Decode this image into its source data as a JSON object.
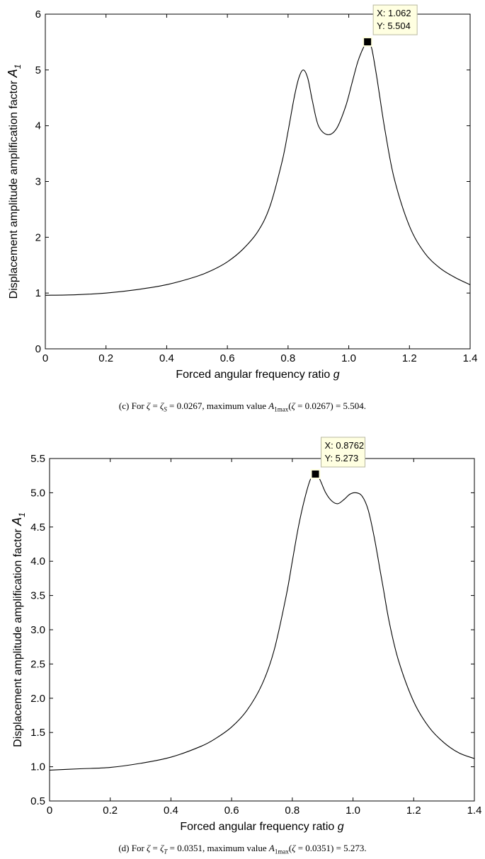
{
  "chart_data": [
    {
      "type": "line",
      "panel": "c",
      "xlabel": "Forced angular frequency ratio g",
      "ylabel": "Displacement amplitude amplification factor A1",
      "xlim": [
        0,
        1.4
      ],
      "ylim": [
        0,
        6
      ],
      "xticks": [
        "0",
        "0.2",
        "0.4",
        "0.6",
        "0.8",
        "1.0",
        "1.2",
        "1.4"
      ],
      "yticks": [
        "0",
        "1",
        "2",
        "3",
        "4",
        "5",
        "6"
      ],
      "grid": false,
      "series": [
        {
          "x": [
            0,
            0.1,
            0.2,
            0.3,
            0.4,
            0.5,
            0.55,
            0.6,
            0.65,
            0.7,
            0.74,
            0.78,
            0.8,
            0.82,
            0.835,
            0.85,
            0.865,
            0.88,
            0.9,
            0.93,
            0.96,
            0.99,
            1.01,
            1.03,
            1.05,
            1.062,
            1.075,
            1.09,
            1.1,
            1.12,
            1.15,
            1.2,
            1.25,
            1.3,
            1.35,
            1.4
          ],
          "y": [
            0.96,
            0.97,
            1.0,
            1.06,
            1.15,
            1.3,
            1.41,
            1.56,
            1.78,
            2.1,
            2.55,
            3.35,
            3.9,
            4.5,
            4.85,
            5.0,
            4.85,
            4.45,
            4.0,
            3.84,
            3.95,
            4.35,
            4.75,
            5.15,
            5.42,
            5.504,
            5.4,
            4.95,
            4.6,
            3.9,
            3.05,
            2.2,
            1.72,
            1.45,
            1.28,
            1.15
          ]
        }
      ],
      "datatip": {
        "x": 1.062,
        "y": 5.504,
        "x_text": "X: 1.062",
        "y_text": "Y: 5.504"
      }
    },
    {
      "type": "line",
      "panel": "d",
      "xlabel": "Forced angular frequency ratio g",
      "ylabel": "Displacement amplitude amplification factor A1",
      "xlim": [
        0,
        1.4
      ],
      "ylim": [
        0.5,
        5.5
      ],
      "xticks": [
        "0",
        "0.2",
        "0.4",
        "0.6",
        "0.8",
        "1.0",
        "1.2",
        "1.4"
      ],
      "yticks": [
        "0.5",
        "1.0",
        "1.5",
        "2.0",
        "2.5",
        "3.0",
        "3.5",
        "4.0",
        "4.5",
        "5.0",
        "5.5"
      ],
      "grid": false,
      "series": [
        {
          "x": [
            0,
            0.1,
            0.2,
            0.3,
            0.4,
            0.5,
            0.55,
            0.6,
            0.65,
            0.7,
            0.74,
            0.78,
            0.8,
            0.82,
            0.84,
            0.86,
            0.8762,
            0.89,
            0.91,
            0.93,
            0.95,
            0.97,
            0.99,
            1.01,
            1.03,
            1.05,
            1.07,
            1.09,
            1.1,
            1.12,
            1.15,
            1.2,
            1.25,
            1.3,
            1.35,
            1.4
          ],
          "y": [
            0.95,
            0.97,
            0.99,
            1.05,
            1.14,
            1.3,
            1.42,
            1.58,
            1.82,
            2.2,
            2.7,
            3.5,
            4.0,
            4.5,
            4.9,
            5.2,
            5.273,
            5.2,
            5.0,
            4.88,
            4.84,
            4.9,
            4.98,
            5.0,
            4.95,
            4.75,
            4.35,
            3.85,
            3.6,
            3.1,
            2.55,
            1.95,
            1.58,
            1.35,
            1.2,
            1.12
          ]
        }
      ],
      "datatip": {
        "x": 0.8762,
        "y": 5.273,
        "x_text": "X: 0.8762",
        "y_text": "Y: 5.273"
      }
    }
  ],
  "captions": {
    "c": {
      "prefix": "(c) For ",
      "zeta": "ζ",
      "eq1": " = ",
      "zeta_sub_base": "ζ",
      "zeta_sub": "S",
      "eq2": " = 0.0267, maximum value ",
      "a_base": "A",
      "a_sub": "1max",
      "paren_open": "(",
      "zeta2": "ζ",
      "tail": " = 0.0267) = 5.504."
    },
    "d": {
      "prefix": "(d) For ",
      "zeta": "ζ",
      "eq1": " = ",
      "zeta_sub_base": "ζ",
      "zeta_sub": "T",
      "eq2": " = 0.0351, maximum value ",
      "a_base": "A",
      "a_sub": "1max",
      "paren_open": "(",
      "zeta2": "ζ",
      "tail": " = 0.0351) = 5.273."
    }
  }
}
